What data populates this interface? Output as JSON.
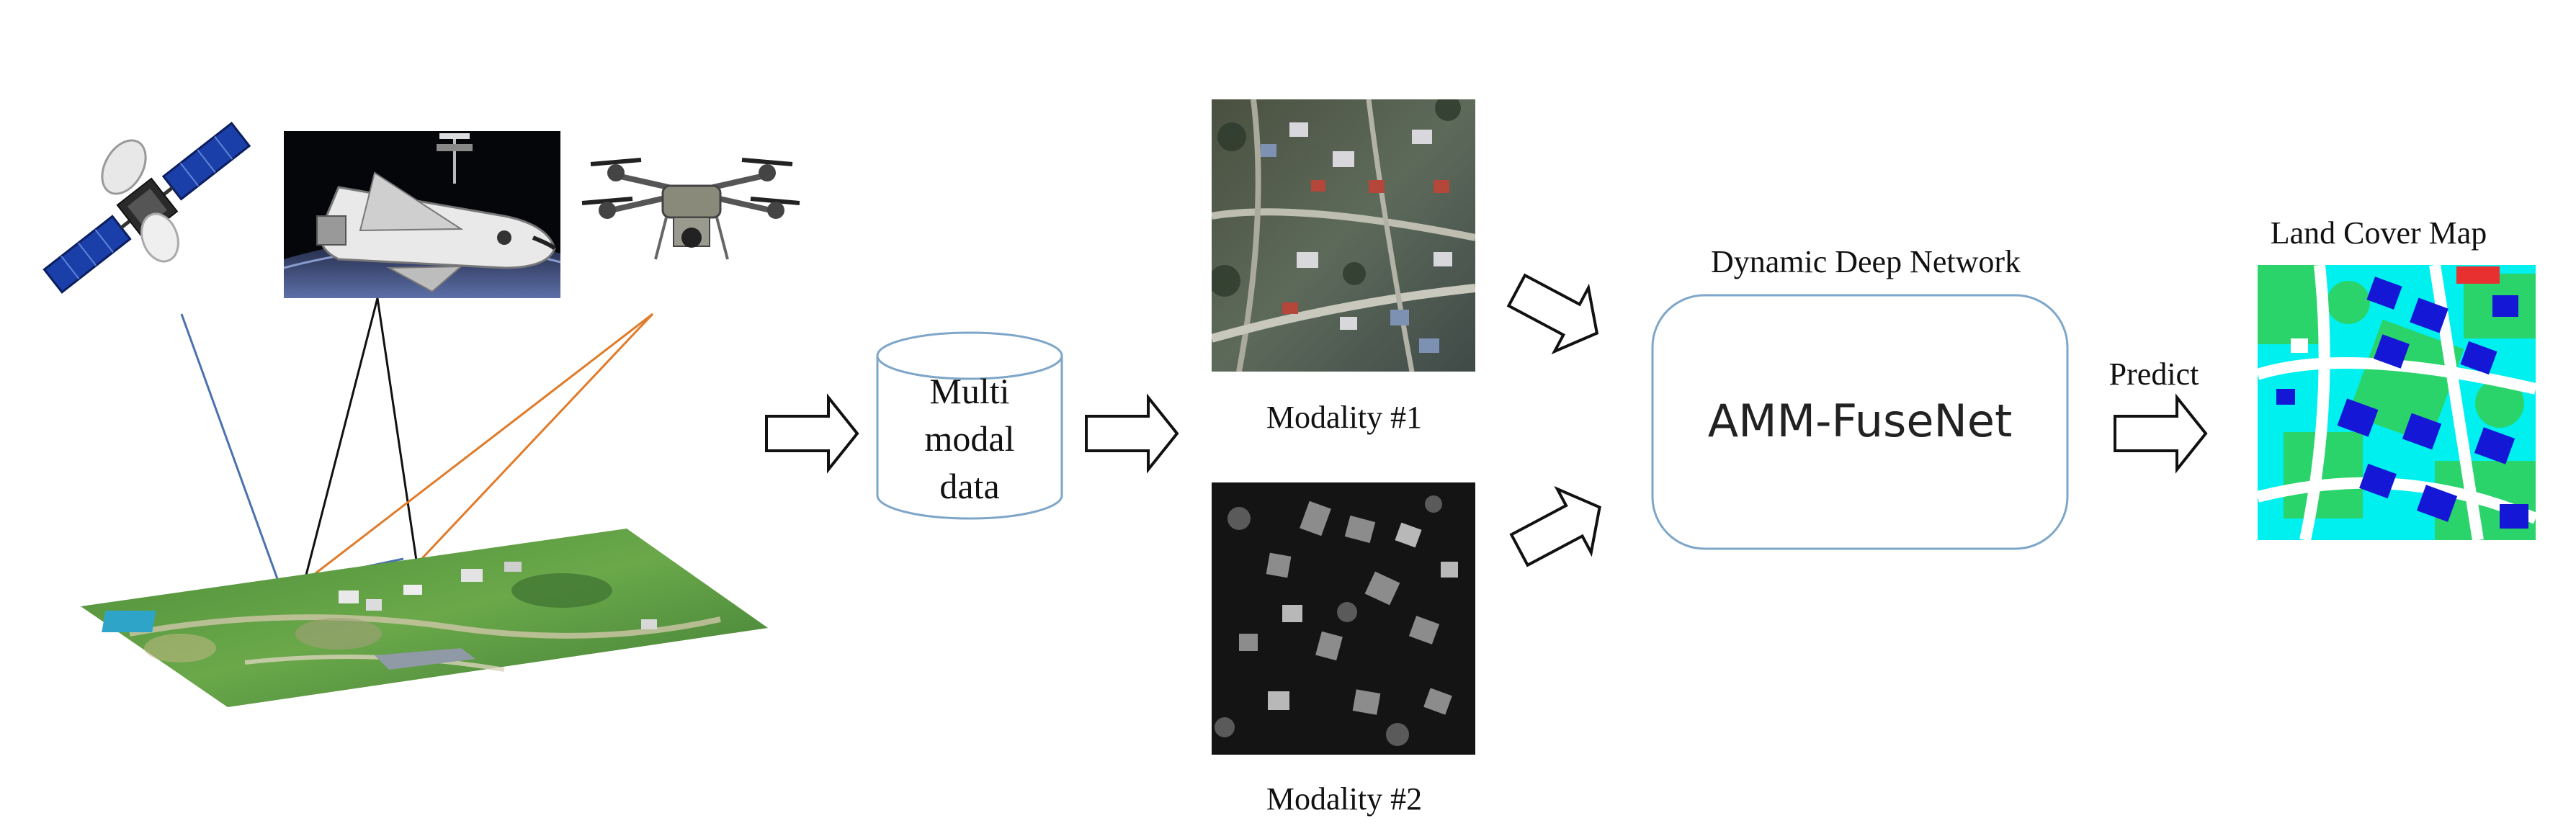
{
  "sources": {
    "satellite_icon": "satellite-icon",
    "shuttle_icon": "space-shuttle-icon",
    "drone_icon": "drone-icon"
  },
  "terrain_icon": "aerial-terrain-icon",
  "database": {
    "line1": "Multi",
    "line2": "modal",
    "line3": "data"
  },
  "modality1": {
    "label": "Modality #1"
  },
  "modality2": {
    "label": "Modality #2"
  },
  "network": {
    "title": "Dynamic Deep Network",
    "name": "AMM-FuseNet"
  },
  "predict_label": "Predict",
  "output": {
    "title": "Land Cover Map"
  },
  "colors": {
    "satellite_ray": "#4a72b0",
    "shuttle_ray": "#111111",
    "drone_ray": "#e07b2a",
    "box_stroke": "#7ea6c8",
    "landcover_building": "#1418d6",
    "landcover_vegetation": "#2bd46b",
    "landcover_background": "#00f0f0",
    "landcover_road": "#ffffff"
  }
}
